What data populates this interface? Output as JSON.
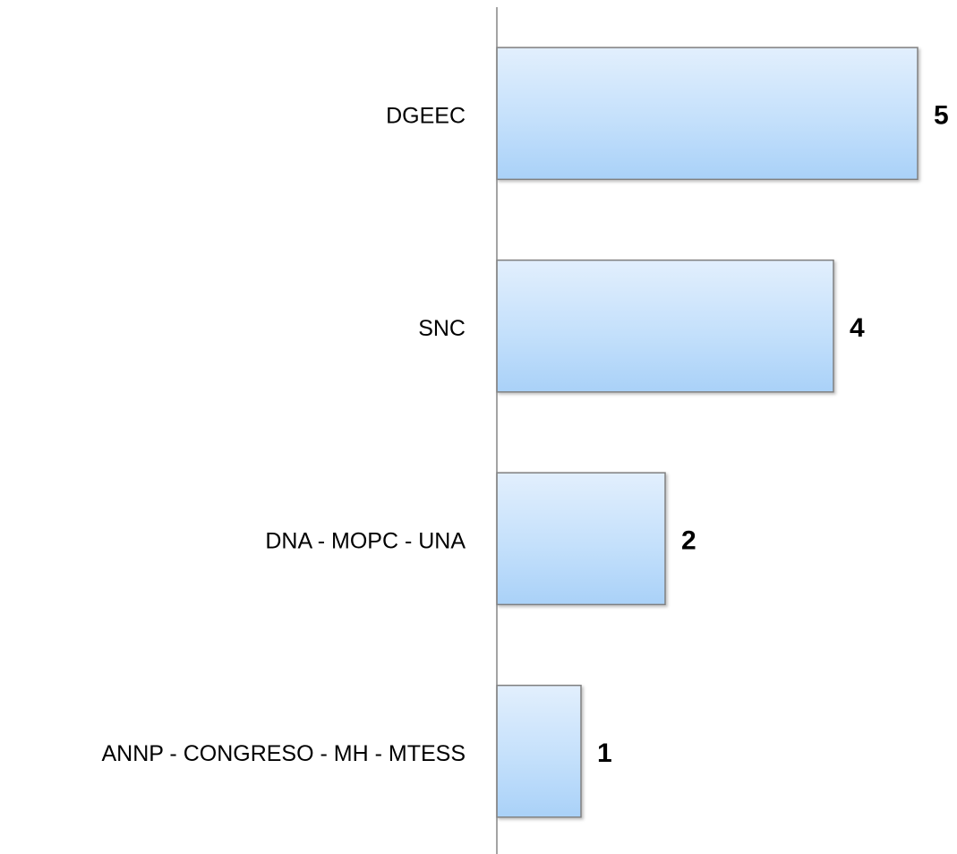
{
  "chart_data": {
    "type": "barh",
    "categories": [
      "DGEEC",
      "SNC",
      "DNA - MOPC - UNA",
      "ANNP - CONGRESO - MH - MTESS"
    ],
    "values": [
      5,
      4,
      2,
      1
    ],
    "color": "#a9d1f8",
    "xlim": [
      0,
      5
    ]
  }
}
